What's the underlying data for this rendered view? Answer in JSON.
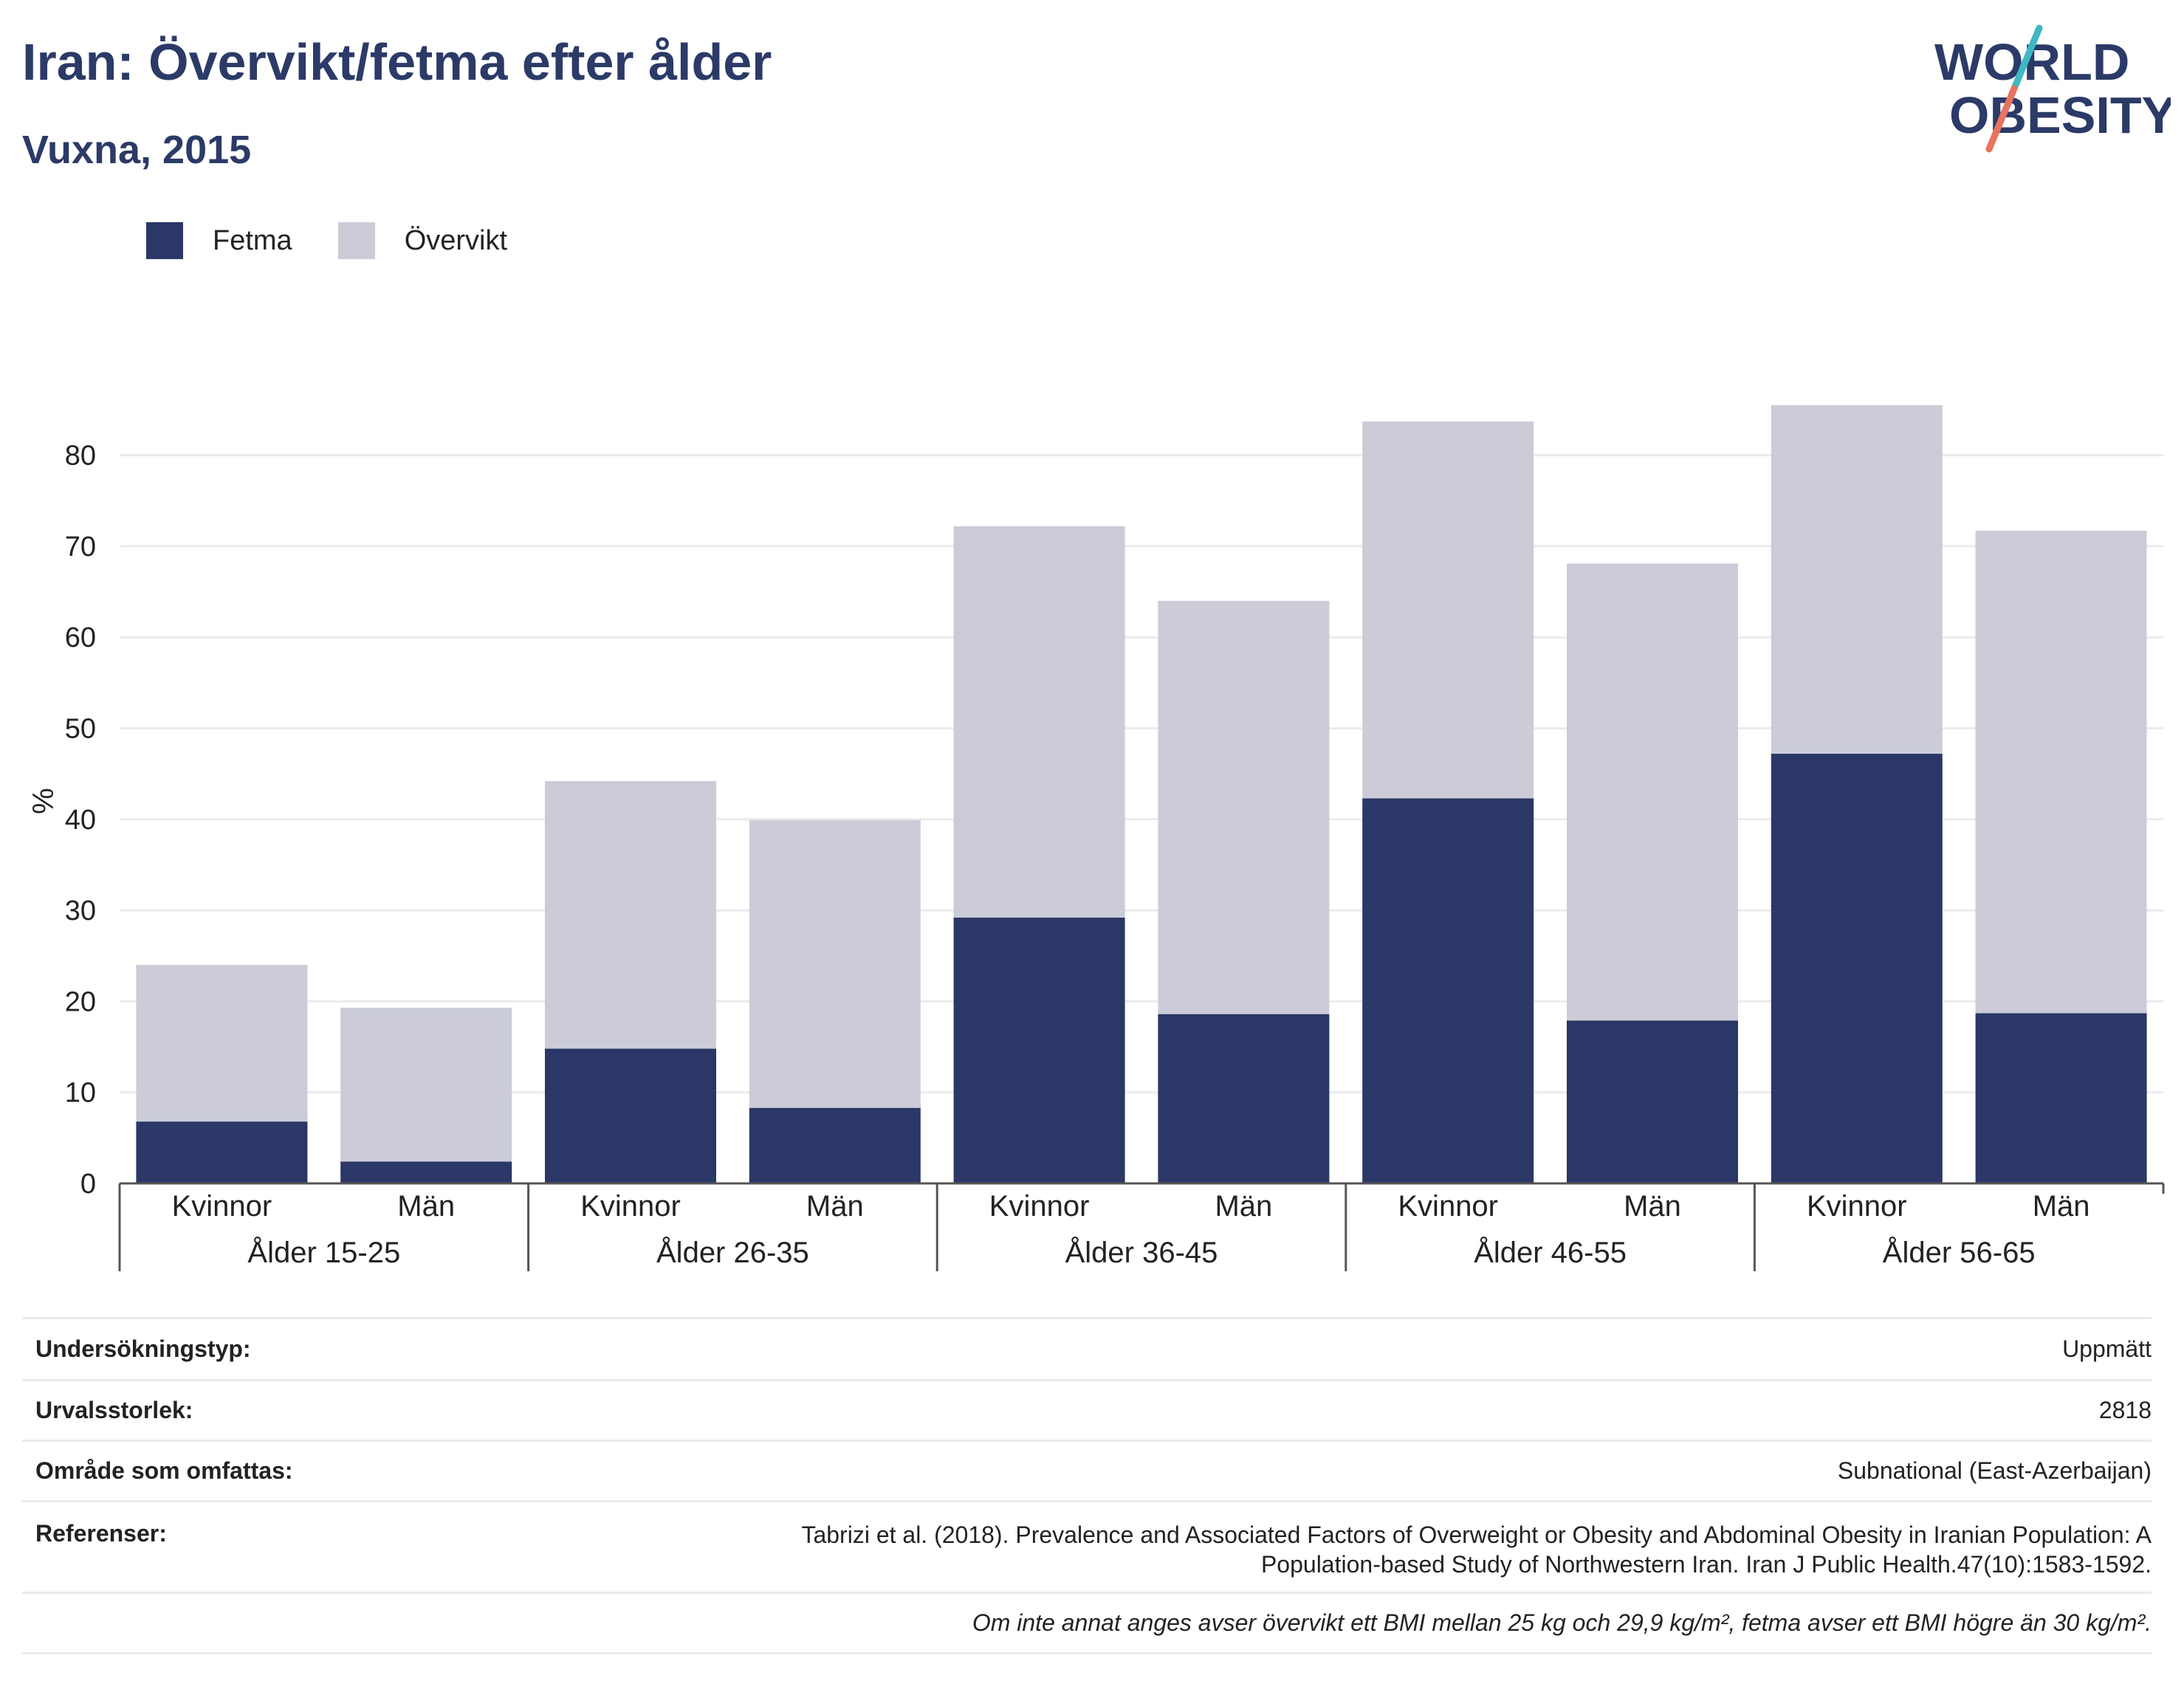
{
  "header": {
    "title": "Iran: Övervikt/fetma efter ålder",
    "subtitle": "Vuxna, 2015"
  },
  "logo": {
    "line1": "WORLD",
    "line2": "OBESITY",
    "colors": {
      "text": "#2b3a67",
      "slash_teal": "#3fb8c4",
      "slash_coral": "#e8735f"
    }
  },
  "legend": [
    {
      "label": "Fetma",
      "color": "#2b3766"
    },
    {
      "label": "Övervikt",
      "color": "#cbccd8"
    }
  ],
  "chart_data": {
    "type": "bar",
    "stacked": true,
    "ylabel": "%",
    "ylim": [
      0,
      87
    ],
    "yticks": [
      0,
      10,
      20,
      30,
      40,
      50,
      60,
      70,
      80
    ],
    "grid": true,
    "legend_position": "top-left",
    "groups": [
      "Ålder 15-25",
      "Ålder 26-35",
      "Ålder 36-45",
      "Ålder 46-55",
      "Ålder 56-65"
    ],
    "categories": [
      "Kvinnor",
      "Män",
      "Kvinnor",
      "Män",
      "Kvinnor",
      "Män",
      "Kvinnor",
      "Män",
      "Kvinnor",
      "Män"
    ],
    "series": [
      {
        "name": "Fetma",
        "color": "#2b3766",
        "values": [
          6.8,
          2.4,
          14.8,
          8.3,
          29.2,
          18.6,
          42.3,
          17.9,
          47.2,
          18.7
        ]
      },
      {
        "name": "Övervikt",
        "color": "#cbccd8",
        "values": [
          17.2,
          16.9,
          29.4,
          31.6,
          43.0,
          45.4,
          41.4,
          50.2,
          38.3,
          53.0
        ]
      }
    ]
  },
  "info": [
    {
      "label": "Undersökningstyp:",
      "value": "Uppmätt"
    },
    {
      "label": "Urvalsstorlek:",
      "value": "2818"
    },
    {
      "label": "Område som omfattas:",
      "value": "Subnational (East-Azerbaijan)"
    },
    {
      "label": "Referenser:",
      "value_line1": "Tabrizi et al. (2018). Prevalence and Associated Factors of Overweight or Obesity and Abdominal Obesity in Iranian Population: A",
      "value_line2": "Population-based Study of Northwestern Iran. Iran J Public Health.47(10):1583-1592."
    }
  ],
  "footnote": "Om inte annat anges avser övervikt ett BMI mellan 25 kg och 29,9 kg/m², fetma avser ett BMI högre än 30 kg/m²."
}
